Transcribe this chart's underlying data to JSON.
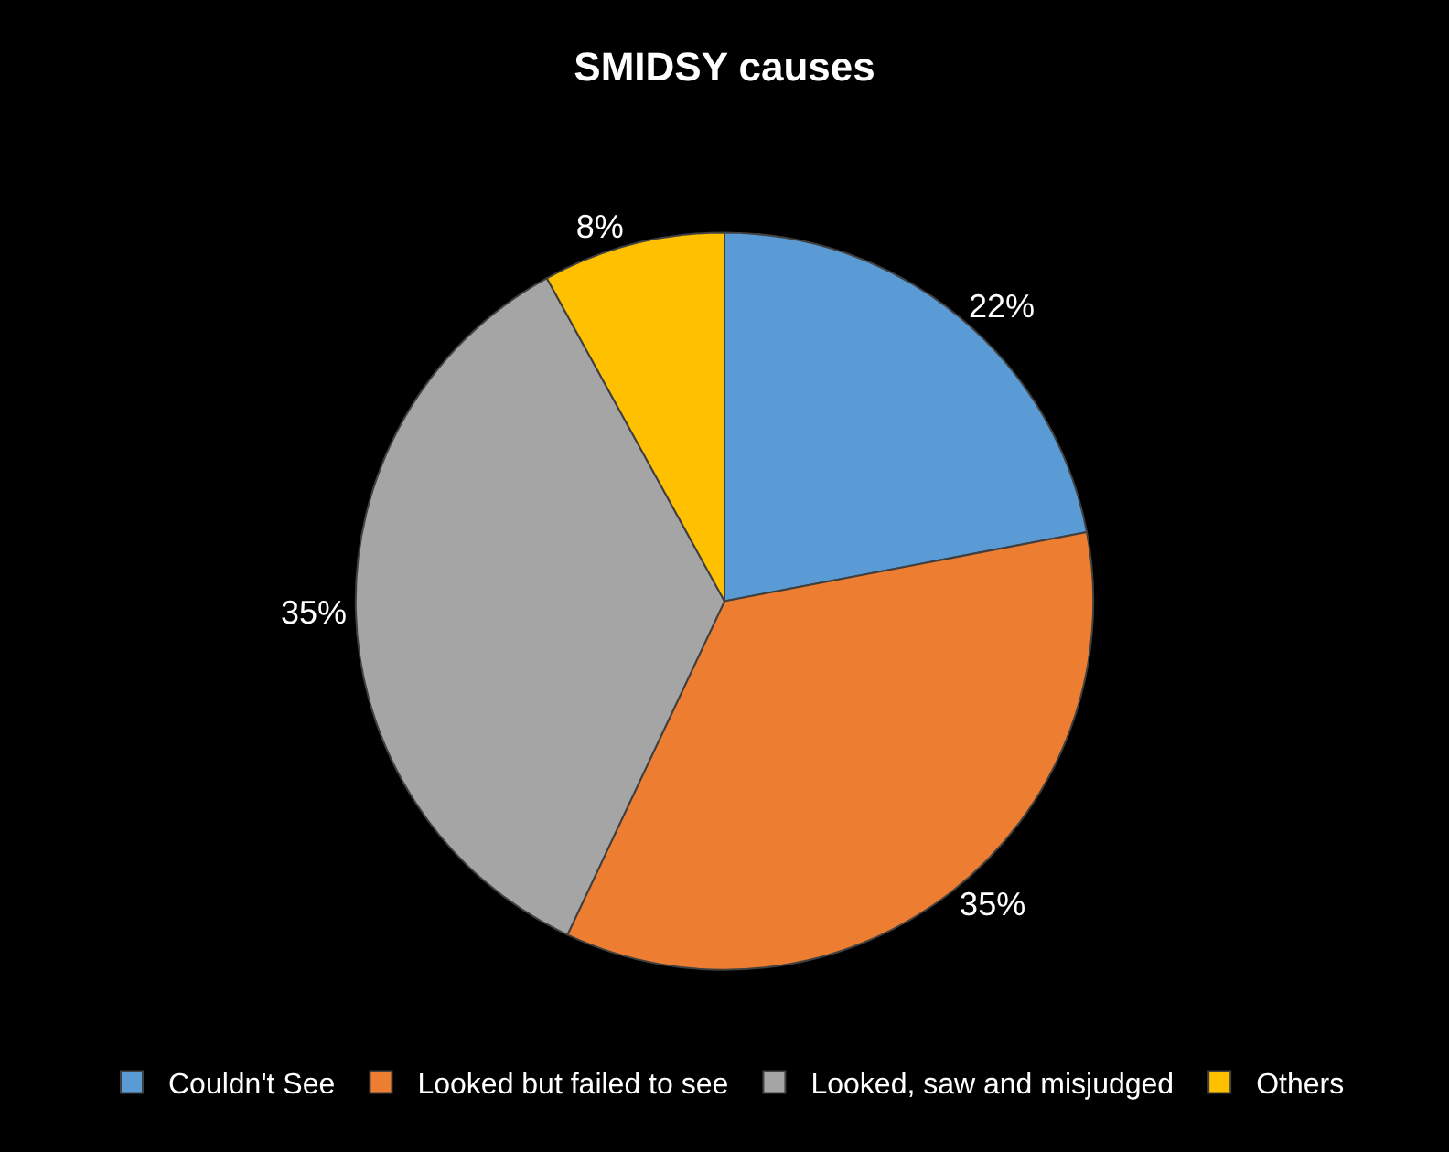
{
  "chart_data": {
    "type": "pie",
    "title": "SMIDSY causes",
    "categories": [
      "Couldn't See",
      "Looked but failed to see",
      "Looked, saw and misjudged",
      "Others"
    ],
    "values": [
      22,
      35,
      35,
      8
    ],
    "value_labels": [
      "22%",
      "35%",
      "35%",
      "8%"
    ],
    "colors": [
      "#5b9bd5",
      "#ed7d31",
      "#a5a5a5",
      "#ffc000"
    ],
    "legend": "bottom"
  }
}
